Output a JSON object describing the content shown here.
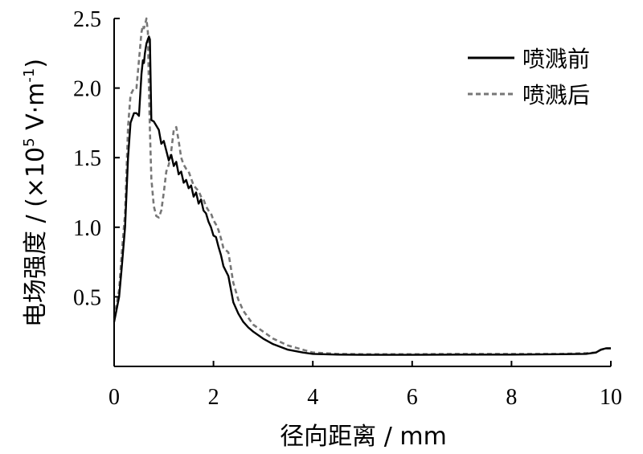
{
  "chart_data": {
    "type": "line",
    "title": "",
    "xlabel": "径向距离 / mm",
    "ylabel_prefix": "电场强度 / (×10",
    "ylabel_exp": "5",
    "ylabel_unit": " V·m",
    "ylabel_unit_exp": "-1",
    "ylabel_suffix": ")",
    "xlim": [
      0,
      10
    ],
    "ylim": [
      0.0,
      2.5
    ],
    "x_ticks": [
      0,
      2,
      4,
      6,
      8,
      10
    ],
    "x_tick_labels": [
      "0",
      "2",
      "4",
      "6",
      "8",
      "10"
    ],
    "y_ticks": [
      0.5,
      1.0,
      1.5,
      2.0,
      2.5
    ],
    "y_tick_labels": [
      "0.5",
      "1.0",
      "1.5",
      "2.0",
      "2.5"
    ],
    "grid": false,
    "legend_position": "top-right",
    "series": [
      {
        "name": "喷溅前",
        "color": "#000000",
        "dash": "solid",
        "x": [
          0,
          0.1,
          0.15,
          0.22,
          0.28,
          0.33,
          0.4,
          0.45,
          0.5,
          0.55,
          0.58,
          0.6,
          0.62,
          0.65,
          0.68,
          0.7,
          0.72,
          0.75,
          0.8,
          0.9,
          0.95,
          1.0,
          1.05,
          1.1,
          1.15,
          1.2,
          1.25,
          1.3,
          1.35,
          1.4,
          1.45,
          1.5,
          1.55,
          1.6,
          1.65,
          1.7,
          1.75,
          1.8,
          1.85,
          1.9,
          1.95,
          2.0,
          2.05,
          2.1,
          2.15,
          2.2,
          2.3,
          2.4,
          2.5,
          2.6,
          2.7,
          2.8,
          3.0,
          3.2,
          3.5,
          3.8,
          4.0,
          4.5,
          5.0,
          6.0,
          7.0,
          8.0,
          9.0,
          9.5,
          9.7,
          9.8,
          9.9,
          10.0
        ],
        "y": [
          0.32,
          0.5,
          0.7,
          1.0,
          1.5,
          1.75,
          1.82,
          1.82,
          1.8,
          2.1,
          2.2,
          2.18,
          2.25,
          2.32,
          2.35,
          2.37,
          2.35,
          1.77,
          1.76,
          1.7,
          1.6,
          1.62,
          1.55,
          1.48,
          1.52,
          1.44,
          1.47,
          1.38,
          1.4,
          1.32,
          1.34,
          1.28,
          1.3,
          1.22,
          1.25,
          1.17,
          1.2,
          1.12,
          1.1,
          1.04,
          1.0,
          0.94,
          0.93,
          0.86,
          0.8,
          0.72,
          0.65,
          0.46,
          0.38,
          0.32,
          0.28,
          0.25,
          0.2,
          0.16,
          0.12,
          0.1,
          0.09,
          0.085,
          0.083,
          0.083,
          0.085,
          0.085,
          0.088,
          0.09,
          0.1,
          0.12,
          0.13,
          0.13
        ]
      },
      {
        "name": "喷溅后",
        "color": "#777777",
        "dash": "dashed",
        "x": [
          0,
          0.1,
          0.15,
          0.22,
          0.28,
          0.33,
          0.4,
          0.45,
          0.5,
          0.55,
          0.58,
          0.6,
          0.62,
          0.65,
          0.68,
          0.7,
          0.72,
          0.75,
          0.8,
          0.85,
          0.9,
          0.95,
          1.0,
          1.05,
          1.1,
          1.15,
          1.2,
          1.25,
          1.3,
          1.35,
          1.4,
          1.45,
          1.5,
          1.55,
          1.6,
          1.65,
          1.7,
          1.75,
          1.8,
          1.85,
          1.9,
          1.95,
          2.0,
          2.05,
          2.1,
          2.15,
          2.2,
          2.3,
          2.4,
          2.5,
          2.6,
          2.7,
          2.8,
          3.0,
          3.2,
          3.5,
          3.8,
          4.0,
          4.5,
          5.0,
          6.0,
          7.0,
          8.0,
          9.0,
          9.5,
          9.7,
          9.8,
          9.9,
          10.0
        ],
        "y": [
          0.35,
          0.55,
          0.8,
          1.1,
          1.72,
          1.95,
          2.0,
          2.0,
          2.2,
          2.4,
          2.45,
          2.43,
          2.45,
          2.5,
          2.4,
          2.0,
          1.7,
          1.35,
          1.15,
          1.08,
          1.07,
          1.12,
          1.25,
          1.4,
          1.45,
          1.55,
          1.7,
          1.72,
          1.62,
          1.5,
          1.45,
          1.42,
          1.4,
          1.35,
          1.3,
          1.28,
          1.26,
          1.22,
          1.2,
          1.15,
          1.12,
          1.1,
          1.05,
          1.02,
          0.98,
          0.92,
          0.85,
          0.82,
          0.6,
          0.48,
          0.4,
          0.35,
          0.3,
          0.25,
          0.2,
          0.15,
          0.12,
          0.1,
          0.09,
          0.088,
          0.088,
          0.09,
          0.09,
          0.09,
          0.095,
          0.1,
          0.12,
          0.13,
          0.13
        ]
      }
    ]
  }
}
